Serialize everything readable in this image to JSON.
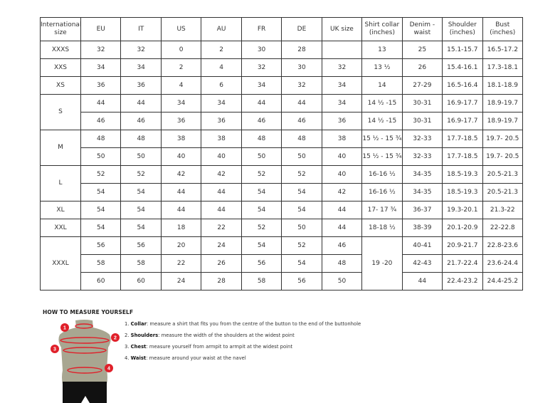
{
  "table": {
    "headers": [
      "International size",
      "EU",
      "IT",
      "US",
      "AU",
      "FR",
      "DE",
      "UK size",
      "Shirt collar (inches)",
      "Denim - waist",
      "Shoulder (inches)",
      "Bust (inches)"
    ],
    "rows": [
      [
        {
          "text": "XXXS",
          "rowspan": 1
        },
        "32",
        "32",
        "0",
        "2",
        "30",
        "28",
        "",
        "13",
        "25",
        "15.1-15.7",
        "16.5-17.2"
      ],
      [
        {
          "text": "XXS",
          "rowspan": 1
        },
        "34",
        "34",
        "2",
        "4",
        "32",
        "30",
        "32",
        "13 ½",
        "26",
        "15.4-16.1",
        "17.3-18.1"
      ],
      [
        {
          "text": "XS",
          "rowspan": 1
        },
        "36",
        "36",
        "4",
        "6",
        "34",
        "32",
        "34",
        "14",
        "27-29",
        "16.5-16.4",
        "18.1-18.9"
      ],
      [
        {
          "text": "S",
          "rowspan": 2
        },
        "44",
        "44",
        "34",
        "34",
        "44",
        "44",
        "34",
        "14 ½ -15",
        "30-31",
        "16.9-17.7",
        "18.9-19.7"
      ],
      [
        "46",
        "46",
        "36",
        "36",
        "46",
        "46",
        "36",
        "14 ½ -15",
        "30-31",
        "16.9-17.7",
        "18.9-19.7"
      ],
      [
        {
          "text": "M",
          "rowspan": 2
        },
        "48",
        "48",
        "38",
        "38",
        "48",
        "48",
        "38",
        "15 ½ - 15 ¾",
        "32-33",
        "17.7-18.5",
        "19.7- 20.5"
      ],
      [
        "50",
        "50",
        "40",
        "40",
        "50",
        "50",
        "40",
        "15 ½ - 15 ¾",
        "32-33",
        "17.7-18.5",
        "19.7- 20.5"
      ],
      [
        {
          "text": "L",
          "rowspan": 2
        },
        "52",
        "52",
        "42",
        "42",
        "52",
        "52",
        "40",
        "16-16 ½",
        "34-35",
        "18.5-19.3",
        "20.5-21.3"
      ],
      [
        "54",
        "54",
        "44",
        "44",
        "54",
        "54",
        "42",
        "16-16 ½",
        "34-35",
        "18.5-19.3",
        "20.5-21.3"
      ],
      [
        {
          "text": "XL",
          "rowspan": 1
        },
        "54",
        "54",
        "44",
        "44",
        "54",
        "54",
        "44",
        "17- 17 ¾",
        "36-37",
        "19.3-20.1",
        "21.3-22"
      ],
      [
        {
          "text": "XXL",
          "rowspan": 1
        },
        "54",
        "54",
        "18",
        "22",
        "52",
        "50",
        "44",
        "18-18 ½",
        "38-39",
        "20.1-20.9",
        "22-22.8"
      ],
      [
        {
          "text": "XXXL",
          "rowspan": 3
        },
        "56",
        "56",
        "20",
        "24",
        "54",
        "52",
        "46",
        {
          "text": "19 -20",
          "rowspan": 3
        },
        "40-41",
        "20.9-21.7",
        "22.8-23.6"
      ],
      [
        "58",
        "58",
        "22",
        "26",
        "56",
        "54",
        "48",
        "42-43",
        "21.7-22.4",
        "23.6-24.4"
      ],
      [
        "60",
        "60",
        "24",
        "28",
        "58",
        "56",
        "50",
        "44",
        "22.4-23.2",
        "24.4-25.2"
      ]
    ]
  },
  "guide": {
    "title": "HOW TO MEASURE YOURSELF",
    "markers": [
      "1",
      "2",
      "3",
      "4"
    ],
    "steps": [
      {
        "num": "1.",
        "term": "Collar",
        "text": ": measure a shirt that fits you from the centre of the button to the end of the buttonhole"
      },
      {
        "num": "2.",
        "term": "Shoulders",
        "text": ": measure the width of the shoulders at the widest point"
      },
      {
        "num": "3.",
        "term": "Chest",
        "text": ": measure yourself from armpit to armpit at the widest point"
      },
      {
        "num": "4.",
        "term": "Waist",
        "text": ": measure around your waist at the navel"
      }
    ]
  },
  "colors": {
    "marker": "#e0202a",
    "torso": "#a8a691",
    "shorts": "#111111"
  }
}
